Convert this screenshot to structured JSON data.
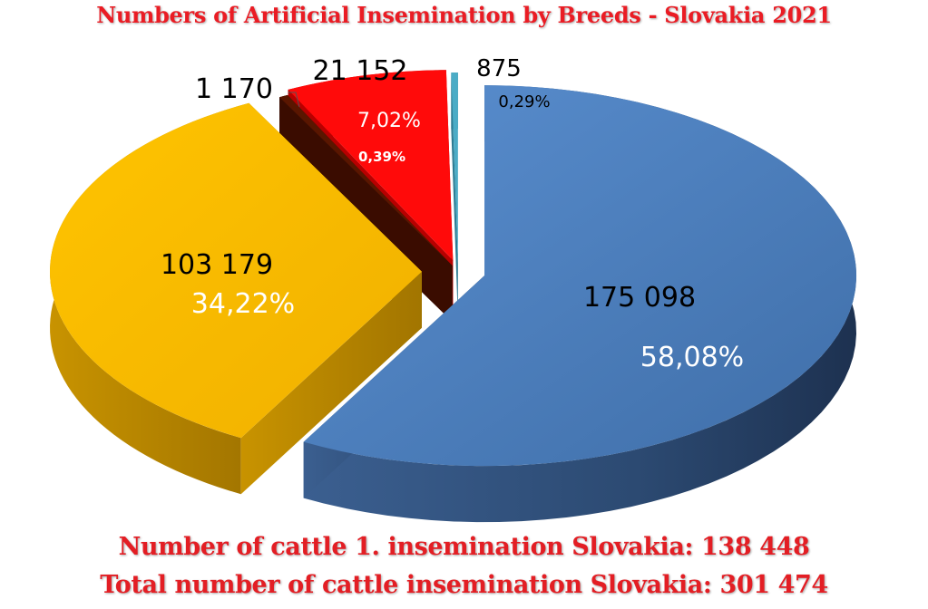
{
  "title": "Numbers of Artificial Insemination by Breeds - Slovakia 2021",
  "footer": {
    "line1": "Number of cattle 1. insemination Slovakia: 138 448",
    "line2": "Total number of cattle insemination Slovakia: 301 474"
  },
  "chart_data": {
    "type": "pie",
    "title": "Numbers of Artificial Insemination by Breeds - Slovakia 2021",
    "style": "3d-exploded",
    "slices": [
      {
        "value": 175098,
        "value_label": "175 098",
        "percent_label": "58,08%",
        "color": "#4f81bd"
      },
      {
        "value": 103179,
        "value_label": "103 179",
        "percent_label": "34,22%",
        "color": "#f6b800"
      },
      {
        "value": 1170,
        "value_label": "1 170",
        "percent_label": "0,39%",
        "color": "#6b1a00"
      },
      {
        "value": 21152,
        "value_label": "21 152",
        "percent_label": "7,02%",
        "color": "#ff0000"
      },
      {
        "value": 875,
        "value_label": "875",
        "percent_label": "0,29%",
        "color": "#4bacc6"
      }
    ],
    "total_number_of_cattle_insemination": 301474,
    "number_of_cattle_first_insemination": 138448
  }
}
